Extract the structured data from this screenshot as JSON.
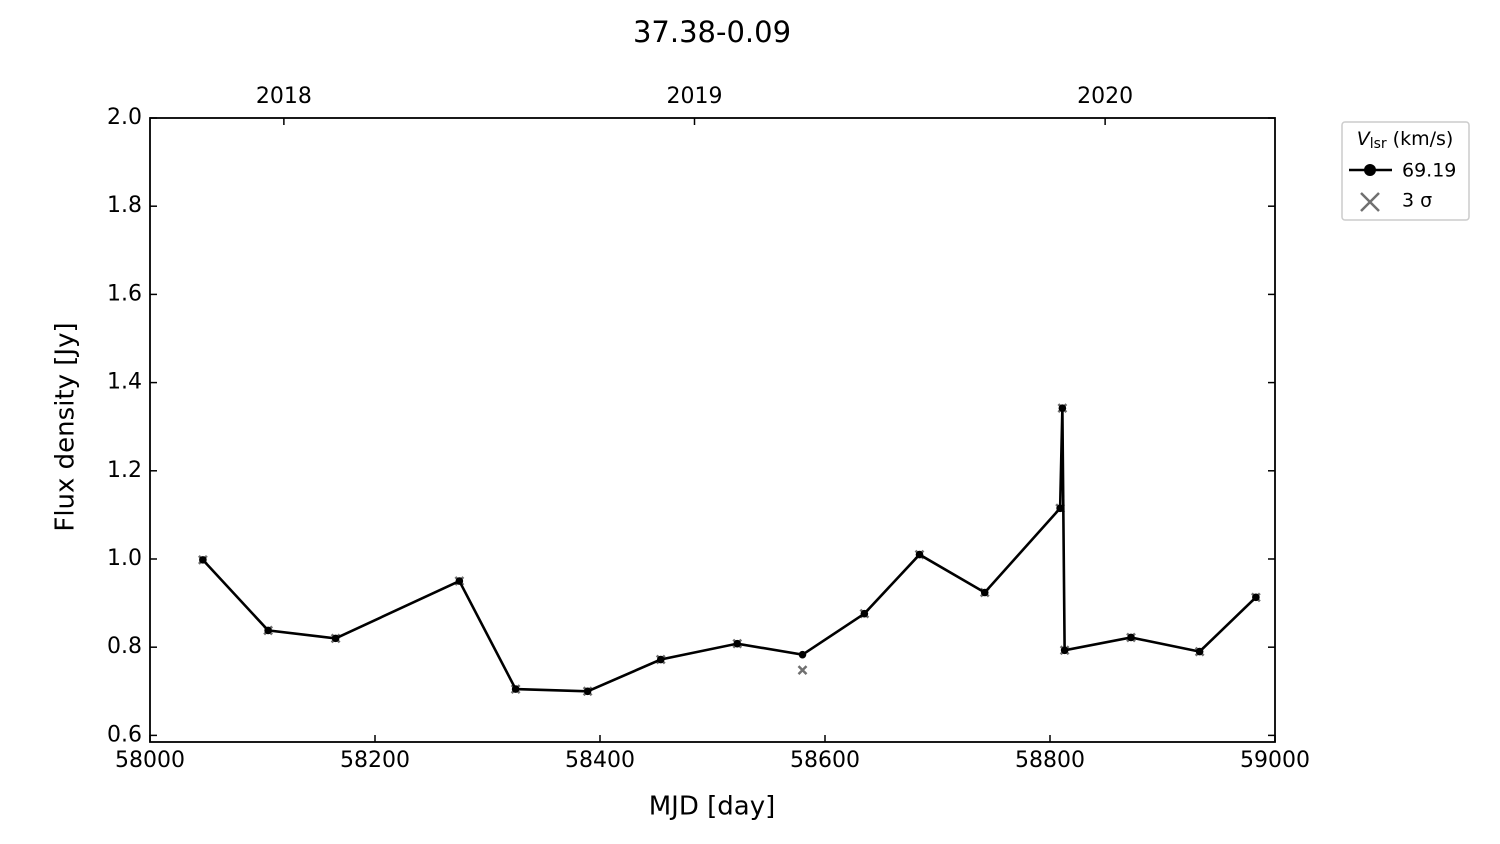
{
  "chart_data": {
    "type": "line",
    "title": "37.38-0.09",
    "xlabel": "MJD [day]",
    "ylabel": "Flux density [Jy]",
    "legend_title": {
      "symbol": "V",
      "subscript": "lsr",
      "unit": "(km/s)"
    },
    "legend": "upper right outside",
    "x": [
      58047,
      58105,
      58165,
      58275,
      58325,
      58389,
      58454,
      58522,
      58580,
      58635,
      58684,
      58742,
      58809,
      58811,
      58813,
      58872,
      58933,
      58983
    ],
    "series": [
      {
        "name": "69.19",
        "color": "#000000",
        "marker": "circle",
        "values": [
          0.998,
          0.838,
          0.82,
          0.95,
          0.705,
          0.7,
          0.772,
          0.808,
          0.783,
          0.876,
          1.01,
          0.924,
          1.115,
          1.342,
          0.793,
          0.822,
          0.79,
          0.913
        ]
      },
      {
        "name": "3 σ",
        "color": "#707070",
        "marker": "x",
        "values": [
          0.998,
          0.838,
          0.82,
          0.95,
          0.705,
          0.7,
          0.772,
          0.808,
          0.748,
          0.876,
          1.01,
          0.924,
          1.115,
          1.342,
          0.793,
          0.822,
          0.79,
          0.913
        ]
      }
    ],
    "xlim": [
      58000,
      59000
    ],
    "xticks": [
      58000,
      58200,
      58400,
      58600,
      58800,
      59000
    ],
    "ylim": [
      0.585,
      2.0
    ],
    "yticks": [
      0.6,
      0.8,
      1.0,
      1.2,
      1.4,
      1.6,
      1.8,
      2.0
    ],
    "yticks_labels": [
      "0.6",
      "0.8",
      "1.0",
      "1.2",
      "1.4",
      "1.6",
      "1.8",
      "2.0"
    ],
    "top_xticks": [
      {
        "value": 58119,
        "label": "2018"
      },
      {
        "value": 58484,
        "label": "2019"
      },
      {
        "value": 58849,
        "label": "2020"
      }
    ],
    "grid": false
  }
}
